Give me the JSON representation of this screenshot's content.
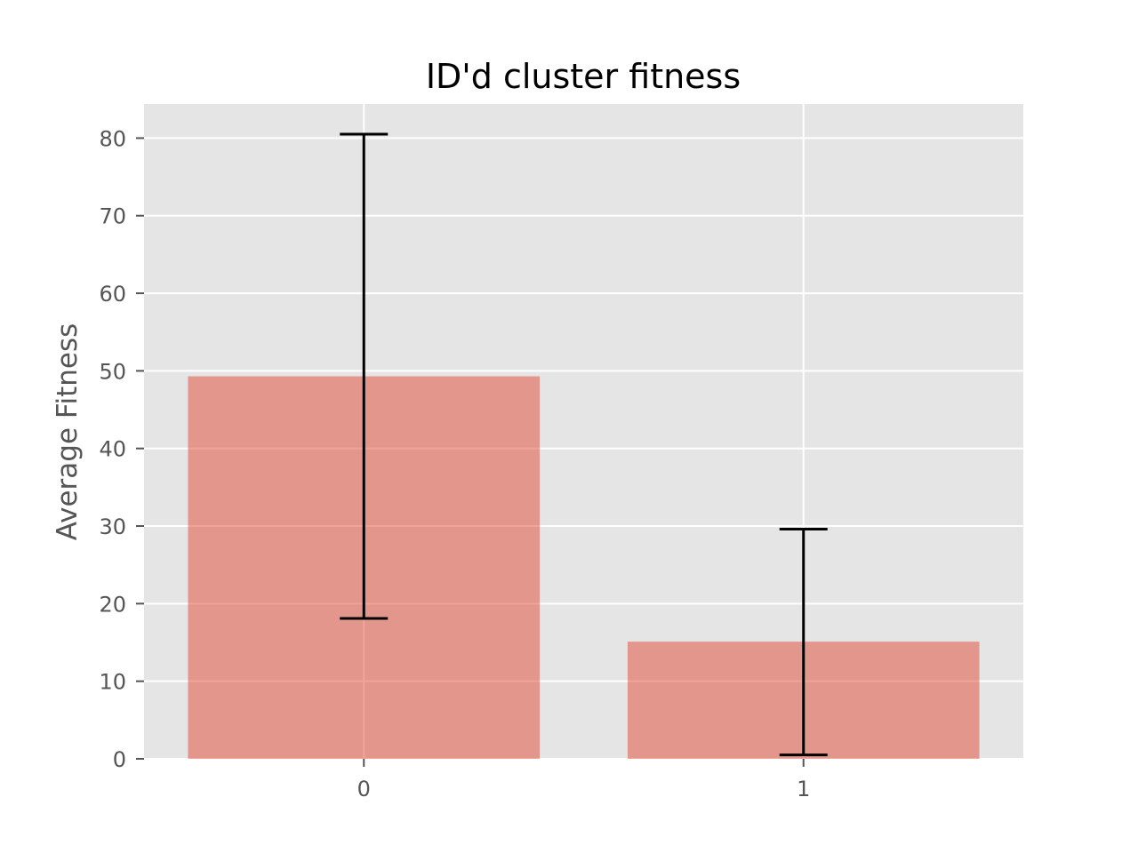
{
  "chart_data": {
    "type": "bar",
    "title": "ID'd cluster fitness",
    "xlabel": "",
    "ylabel": "Average Fitness",
    "categories": [
      "0",
      "1"
    ],
    "values": [
      49.3,
      15.1
    ],
    "error_bars": [
      {
        "low": 18.1,
        "high": 80.5
      },
      {
        "low": 0.5,
        "high": 29.6
      }
    ],
    "ylim": [
      0,
      84.4
    ],
    "yticks": [
      0,
      10,
      20,
      30,
      40,
      50,
      60,
      70,
      80
    ],
    "grid": true,
    "bar_color": "#e24a33",
    "bar_alpha": 0.5,
    "axes_background": "#e5e5e5",
    "grid_color": "#ffffff",
    "errorbar_color": "#000000"
  }
}
